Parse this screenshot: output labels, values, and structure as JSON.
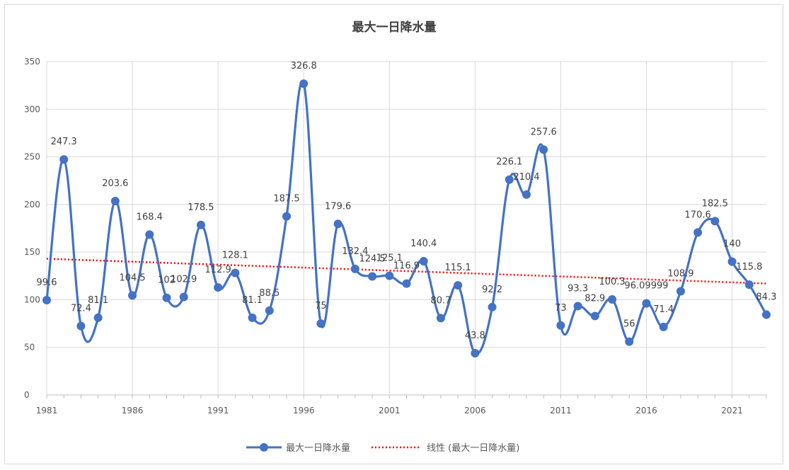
{
  "chart_data": {
    "type": "line",
    "title": "最大一日降水量",
    "xlabel": "",
    "ylabel": "",
    "ylim": [
      0,
      350
    ],
    "yticks": [
      0,
      50,
      100,
      150,
      200,
      250,
      300,
      350
    ],
    "xlim": [
      1981,
      2023
    ],
    "xticks": [
      1981,
      1986,
      1991,
      1996,
      2001,
      2006,
      2011,
      2016,
      2021
    ],
    "grid": true,
    "legend_position": "bottom",
    "colors": {
      "series": "#4472c4",
      "trend": "#ff0000"
    },
    "series": [
      {
        "name": "最大一日降水量",
        "x": [
          1981,
          1982,
          1983,
          1984,
          1985,
          1986,
          1987,
          1988,
          1989,
          1990,
          1991,
          1992,
          1993,
          1994,
          1995,
          1996,
          1997,
          1998,
          1999,
          2000,
          2001,
          2002,
          2003,
          2004,
          2005,
          2006,
          2007,
          2008,
          2009,
          2010,
          2011,
          2012,
          2013,
          2014,
          2015,
          2016,
          2017,
          2018,
          2019,
          2020,
          2021,
          2022,
          2023
        ],
        "values": [
          99.6,
          247.3,
          72.4,
          81.1,
          203.6,
          104.5,
          168.4,
          102,
          102.9,
          178.5,
          112.9,
          128.1,
          81.1,
          88.5,
          187.5,
          326.8,
          75,
          179.6,
          132.4,
          124.5,
          125.1,
          116.9,
          140.4,
          80.7,
          115.1,
          43.8,
          92.2,
          226.1,
          210.4,
          257.6,
          73,
          93.3,
          82.9,
          100.3,
          56,
          96.09999,
          71.4,
          108.9,
          170.6,
          182.5,
          140,
          115.8,
          84.3
        ],
        "labels": [
          "99.6",
          "247.3",
          "72.4",
          "81.1",
          "203.6",
          "104.5",
          "168.4",
          "102",
          "102.9",
          "178.5",
          "112.9",
          "128.1",
          "81.1",
          "88.5",
          "187.5",
          "326.8",
          "75",
          "179.6",
          "132.4",
          "124.5",
          "125.1",
          "116.9",
          "140.4",
          "80.7",
          "115.1",
          "43.8",
          "92.2",
          "226.1",
          "210.4",
          "257.6",
          "73",
          "93.3",
          "82.9",
          "100.3",
          "56",
          "96.09999",
          "71.4",
          "108.9",
          "170.6",
          "182.5",
          "140",
          "115.8",
          "84.3"
        ]
      },
      {
        "name": "线性 (最大一日降水量)",
        "type": "trendline-linear",
        "x": [
          1981,
          2023
        ],
        "values": [
          143,
          117
        ]
      }
    ]
  }
}
